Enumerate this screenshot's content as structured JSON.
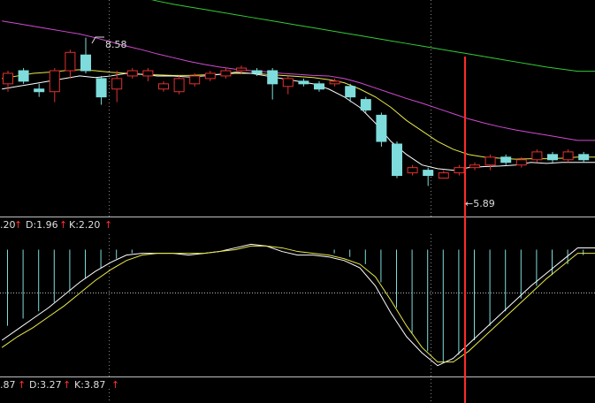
{
  "chart_data": [
    {
      "type": "candlestick",
      "annotations": {
        "high_marker": "8.58",
        "low_marker": "←5.89"
      },
      "colors": {
        "up": "#e23030",
        "down": "#7fdcdc",
        "ma_short": "#ffffff",
        "ma_mid": "#e8e84a",
        "ma_long": "#d24ad2",
        "ma_longer": "#33cc33",
        "cursor": "#ff2a2a"
      },
      "price_range": [
        5.2,
        9.3
      ],
      "candles": [
        {
          "o": 7.7,
          "c": 7.9,
          "h": 7.95,
          "l": 7.55
        },
        {
          "o": 7.95,
          "c": 7.75,
          "h": 8.0,
          "l": 7.7
        },
        {
          "o": 7.6,
          "c": 7.55,
          "h": 7.7,
          "l": 7.45
        },
        {
          "o": 7.55,
          "c": 7.95,
          "h": 8.0,
          "l": 7.35
        },
        {
          "o": 7.95,
          "c": 8.3,
          "h": 8.35,
          "l": 7.8
        },
        {
          "o": 8.25,
          "c": 7.95,
          "h": 8.58,
          "l": 7.9
        },
        {
          "o": 7.8,
          "c": 7.45,
          "h": 7.85,
          "l": 7.3
        },
        {
          "o": 7.6,
          "c": 7.8,
          "h": 7.95,
          "l": 7.35
        },
        {
          "o": 7.85,
          "c": 7.95,
          "h": 8.0,
          "l": 7.8
        },
        {
          "o": 7.85,
          "c": 7.95,
          "h": 8.0,
          "l": 7.75
        },
        {
          "o": 7.6,
          "c": 7.7,
          "h": 7.75,
          "l": 7.55
        },
        {
          "o": 7.55,
          "c": 7.8,
          "h": 7.85,
          "l": 7.5
        },
        {
          "o": 7.7,
          "c": 7.85,
          "h": 7.9,
          "l": 7.65
        },
        {
          "o": 7.8,
          "c": 7.9,
          "h": 7.95,
          "l": 7.75
        },
        {
          "o": 7.85,
          "c": 7.95,
          "h": 8.0,
          "l": 7.8
        },
        {
          "o": 7.95,
          "c": 8.0,
          "h": 8.05,
          "l": 7.9
        },
        {
          "o": 7.95,
          "c": 7.9,
          "h": 8.0,
          "l": 7.85
        },
        {
          "o": 7.95,
          "c": 7.7,
          "h": 8.0,
          "l": 7.4
        },
        {
          "o": 7.65,
          "c": 7.8,
          "h": 7.85,
          "l": 7.5
        },
        {
          "o": 7.75,
          "c": 7.7,
          "h": 7.8,
          "l": 7.65
        },
        {
          "o": 7.7,
          "c": 7.6,
          "h": 7.75,
          "l": 7.55
        },
        {
          "o": 7.7,
          "c": 7.75,
          "h": 7.8,
          "l": 7.65
        },
        {
          "o": 7.65,
          "c": 7.45,
          "h": 7.7,
          "l": 7.35
        },
        {
          "o": 7.4,
          "c": 7.2,
          "h": 7.45,
          "l": 7.15
        },
        {
          "o": 7.1,
          "c": 6.6,
          "h": 7.15,
          "l": 6.5
        },
        {
          "o": 6.55,
          "c": 5.95,
          "h": 6.6,
          "l": 5.9
        },
        {
          "o": 6.0,
          "c": 6.1,
          "h": 6.15,
          "l": 5.95
        },
        {
          "o": 6.05,
          "c": 5.95,
          "h": 6.1,
          "l": 5.75
        },
        {
          "o": 5.9,
          "c": 6.0,
          "h": 6.05,
          "l": 5.89
        },
        {
          "o": 6.0,
          "c": 6.1,
          "h": 6.15,
          "l": 5.95
        },
        {
          "o": 6.1,
          "c": 6.15,
          "h": 6.2,
          "l": 6.05
        },
        {
          "o": 6.15,
          "c": 6.3,
          "h": 6.35,
          "l": 6.05
        },
        {
          "o": 6.3,
          "c": 6.2,
          "h": 6.35,
          "l": 6.15
        },
        {
          "o": 6.15,
          "c": 6.25,
          "h": 6.3,
          "l": 6.1
        },
        {
          "o": 6.25,
          "c": 6.4,
          "h": 6.45,
          "l": 6.2
        },
        {
          "o": 6.35,
          "c": 6.25,
          "h": 6.4,
          "l": 6.2
        },
        {
          "o": 6.25,
          "c": 6.4,
          "h": 6.45,
          "l": 6.2
        },
        {
          "o": 6.35,
          "c": 6.25,
          "h": 6.4,
          "l": 6.2
        }
      ],
      "ma_short": [
        7.6,
        7.65,
        7.7,
        7.75,
        7.8,
        7.85,
        7.82,
        7.85,
        7.9,
        7.88,
        7.85,
        7.85,
        7.83,
        7.85,
        7.88,
        7.92,
        7.9,
        7.85,
        7.8,
        7.75,
        7.7,
        7.6,
        7.45,
        7.25,
        6.95,
        6.6,
        6.35,
        6.15,
        6.08,
        6.05,
        6.1,
        6.12,
        6.13,
        6.15,
        6.2,
        6.18,
        6.2,
        6.2
      ],
      "ma_mid": [
        7.8,
        7.85,
        7.9,
        7.92,
        7.95,
        7.97,
        7.95,
        7.92,
        7.9,
        7.88,
        7.87,
        7.86,
        7.86,
        7.87,
        7.88,
        7.9,
        7.9,
        7.88,
        7.86,
        7.84,
        7.82,
        7.78,
        7.72,
        7.6,
        7.45,
        7.25,
        7.0,
        6.8,
        6.6,
        6.45,
        6.35,
        6.3,
        6.28,
        6.26,
        6.27,
        6.27,
        6.28,
        6.3
      ],
      "ma_long": [
        8.9,
        8.85,
        8.8,
        8.75,
        8.7,
        8.65,
        8.58,
        8.5,
        8.42,
        8.35,
        8.27,
        8.2,
        8.13,
        8.07,
        8.02,
        7.98,
        7.95,
        7.93,
        7.9,
        7.88,
        7.86,
        7.85,
        7.8,
        7.72,
        7.62,
        7.52,
        7.42,
        7.33,
        7.23,
        7.13,
        7.03,
        6.95,
        6.88,
        6.82,
        6.77,
        6.72,
        6.67,
        6.62
      ],
      "ma_longer": [
        10.2,
        10.1,
        10.0,
        9.9,
        9.8,
        9.7,
        9.6,
        9.5,
        9.42,
        9.35,
        9.28,
        9.22,
        9.17,
        9.12,
        9.07,
        9.02,
        8.97,
        8.92,
        8.87,
        8.82,
        8.77,
        8.72,
        8.67,
        8.62,
        8.57,
        8.52,
        8.47,
        8.42,
        8.37,
        8.32,
        8.27,
        8.22,
        8.17,
        8.12,
        8.07,
        8.02,
        7.98,
        7.94
      ]
    },
    {
      "type": "line",
      "legend": [
        {
          "text": ".20",
          "arrow": "↑"
        },
        {
          "text": "D:1.96",
          "arrow": "↑"
        },
        {
          "text": "K:2.20",
          "arrow": "↑"
        }
      ],
      "range": [
        -7,
        1
      ],
      "zero_level": 0,
      "hist": [
        -4.2,
        -3.8,
        -3.4,
        -2.9,
        -2.3,
        -1.6,
        -1.0,
        -0.5,
        -0.2,
        0,
        0,
        0,
        0,
        0,
        0,
        0,
        0,
        0,
        0,
        0,
        0,
        -0.2,
        -0.4,
        -0.8,
        -1.8,
        -3.2,
        -4.6,
        -5.6,
        -6.2,
        -5.8,
        -5.0,
        -4.2,
        -3.4,
        -2.7,
        -2.0,
        -1.4,
        -0.8,
        -0.3
      ],
      "series": [
        {
          "values": [
            -5.0,
            -4.4,
            -3.8,
            -3.2,
            -2.5,
            -1.8,
            -1.2,
            -0.7,
            -0.3,
            -0.2,
            -0.2,
            -0.2,
            -0.3,
            -0.2,
            -0.1,
            0.1,
            0.3,
            0.2,
            -0.1,
            -0.3,
            -0.3,
            -0.4,
            -0.6,
            -1.0,
            -2.0,
            -3.5,
            -4.8,
            -5.7,
            -6.4,
            -6.0,
            -5.2,
            -4.4,
            -3.6,
            -2.8,
            -2.0,
            -1.3,
            -0.6,
            0.1
          ]
        },
        {
          "values": [
            -5.4,
            -4.8,
            -4.3,
            -3.7,
            -3.1,
            -2.4,
            -1.7,
            -1.1,
            -0.6,
            -0.3,
            -0.2,
            -0.2,
            -0.2,
            -0.2,
            -0.1,
            0,
            0.2,
            0.2,
            0.1,
            -0.1,
            -0.2,
            -0.3,
            -0.5,
            -0.8,
            -1.5,
            -2.8,
            -4.2,
            -5.4,
            -6.2,
            -6.2,
            -5.6,
            -4.8,
            -4.0,
            -3.2,
            -2.4,
            -1.6,
            -0.9,
            -0.2
          ]
        }
      ]
    },
    {
      "type": "line",
      "legend": [
        {
          "text": ".87",
          "arrow": "↑"
        },
        {
          "text": "D:3.27",
          "arrow": "↑"
        },
        {
          "text": "K:3.87",
          "arrow": "↑"
        }
      ]
    }
  ]
}
